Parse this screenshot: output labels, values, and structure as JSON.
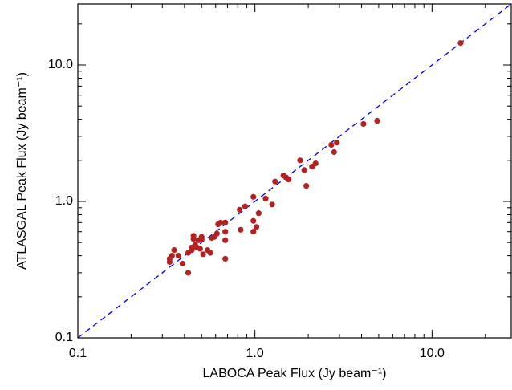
{
  "chart_data": {
    "type": "scatter",
    "x_label": "LABOCA Peak Flux (Jy beam⁻¹)",
    "y_label": "ATLASGAL Peak Flux (Jy beam⁻¹)",
    "x_scale": "log",
    "y_scale": "log",
    "xlim": [
      0.1,
      28
    ],
    "ylim": [
      0.1,
      28
    ],
    "xticks": [
      0.1,
      {
        "value": 1,
        "label": "1.0"
      },
      {
        "value": 10,
        "label": "10.0"
      }
    ],
    "yticks": [
      0.1,
      {
        "value": 1,
        "label": "1.0"
      },
      {
        "value": 10,
        "label": "10.0"
      }
    ],
    "minor_ticks": [
      0.2,
      0.3,
      0.4,
      0.5,
      0.6,
      0.7,
      0.8,
      0.9,
      2,
      3,
      4,
      5,
      6,
      7,
      8,
      9,
      20
    ],
    "reference_line": {
      "slope": 1,
      "color": "#0000dd",
      "dashed": true
    },
    "series": [
      {
        "color": "#b22222",
        "x": [
          14.5,
          4.9,
          4.1,
          2.9,
          2.8,
          2.7,
          2.2,
          2.1,
          1.8,
          1.9,
          1.95,
          1.55,
          1.45,
          1.5,
          1.3,
          1.25,
          1.15,
          1.05,
          1.02,
          0.98,
          0.98,
          0.98,
          0.88,
          0.82,
          0.83,
          0.68,
          0.68,
          0.68,
          0.68,
          0.64,
          0.62,
          0.61,
          0.59,
          0.57,
          0.56,
          0.54,
          0.51,
          0.5,
          0.5,
          0.48,
          0.49,
          0.47,
          0.46,
          0.45,
          0.45,
          0.44,
          0.44,
          0.42,
          0.42,
          0.39,
          0.37,
          0.35,
          0.34,
          0.33,
          0.33
        ],
        "values": [
          14.5,
          3.9,
          3.7,
          2.7,
          2.3,
          2.6,
          1.9,
          1.8,
          2.0,
          1.7,
          1.3,
          1.45,
          1.55,
          1.5,
          1.4,
          0.95,
          1.05,
          0.82,
          0.65,
          0.6,
          1.08,
          0.72,
          0.92,
          0.87,
          0.62,
          0.6,
          0.7,
          0.52,
          0.38,
          0.7,
          0.68,
          0.58,
          0.55,
          0.54,
          0.42,
          0.44,
          0.41,
          0.55,
          0.53,
          0.52,
          0.45,
          0.46,
          0.48,
          0.56,
          0.53,
          0.44,
          0.46,
          0.42,
          0.3,
          0.35,
          0.4,
          0.44,
          0.4,
          0.38,
          0.36
        ]
      }
    ]
  }
}
